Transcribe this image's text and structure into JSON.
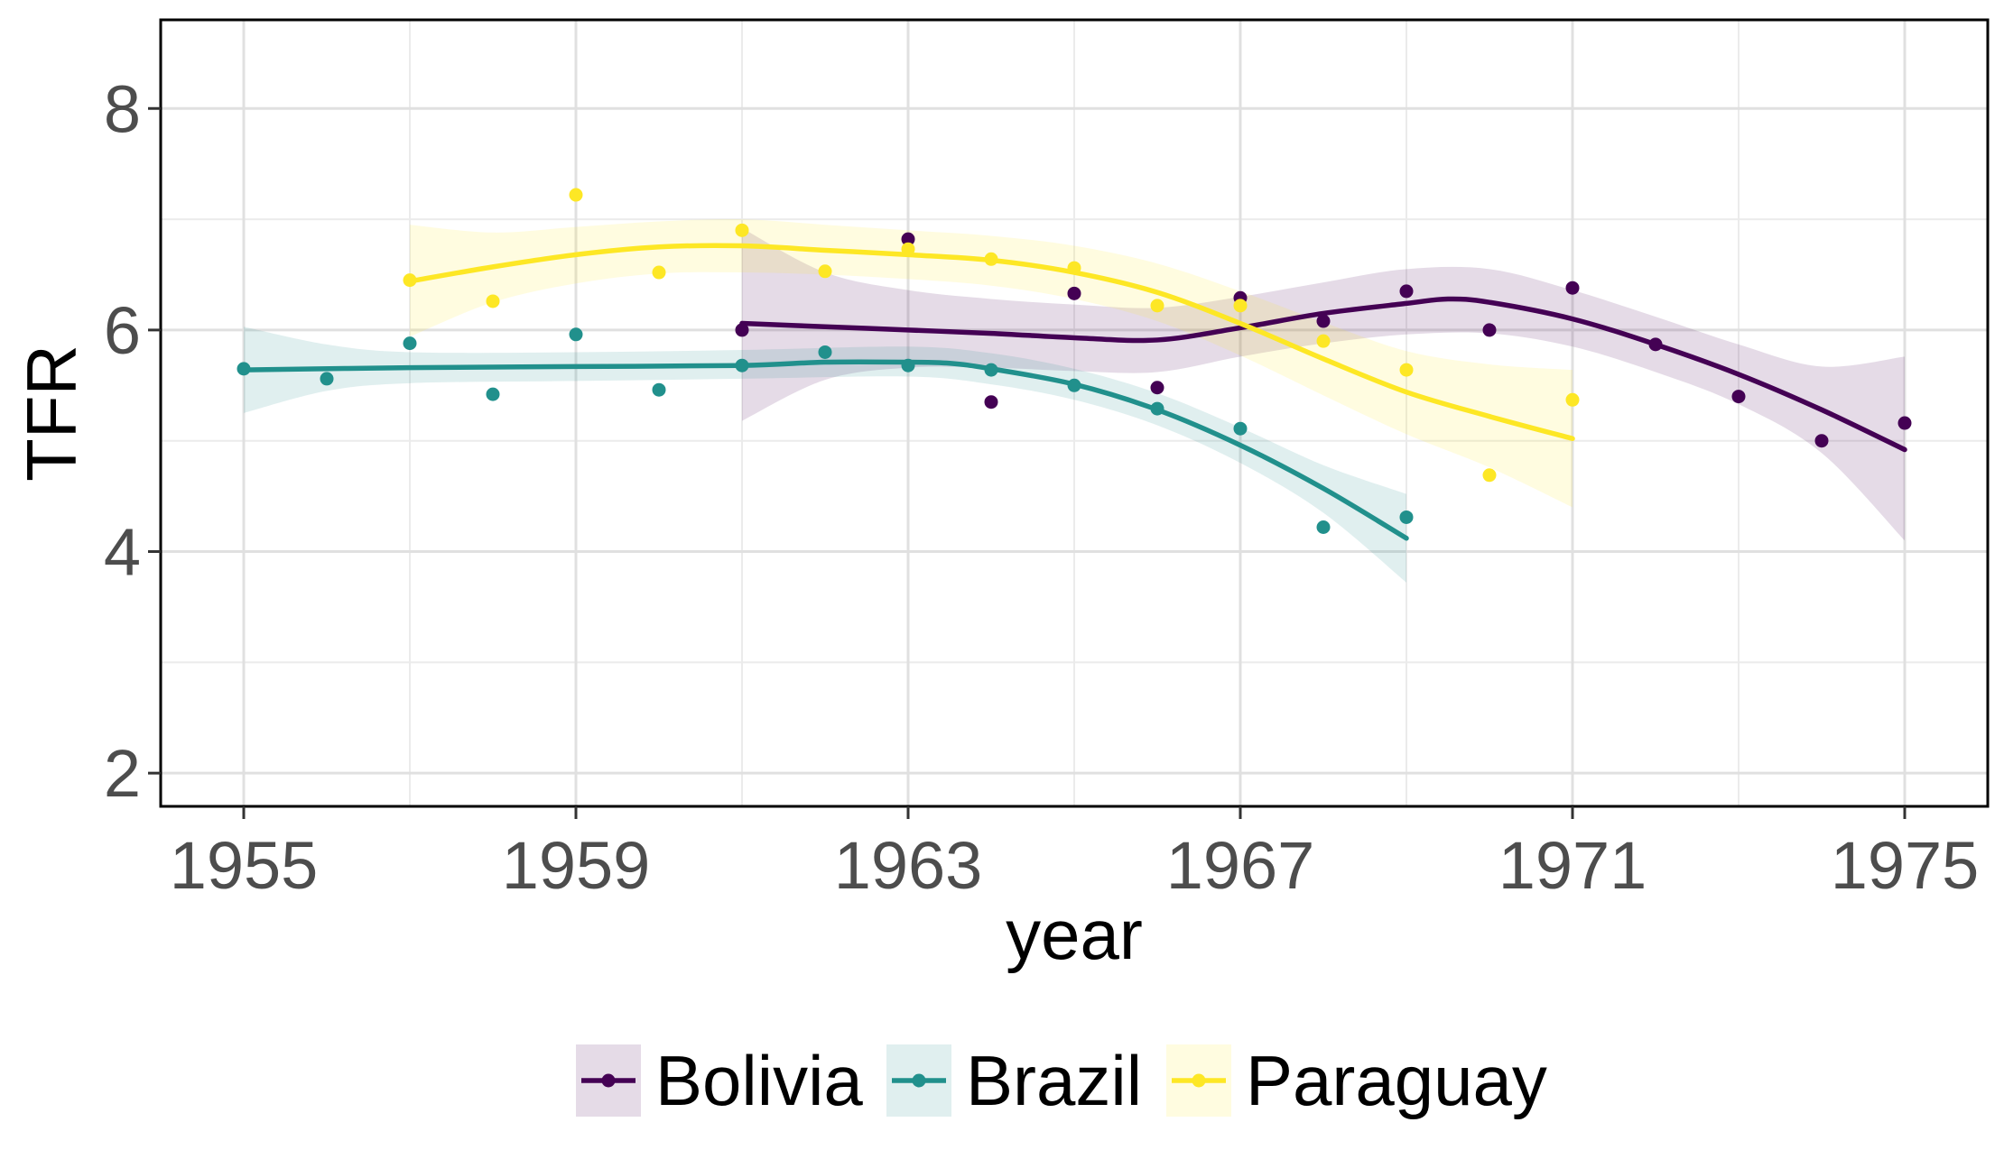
{
  "chart_data": {
    "type": "scatter",
    "xlabel": "year",
    "ylabel": "TFR",
    "xlim": [
      1954,
      1976
    ],
    "ylim": [
      1.7,
      8.8
    ],
    "x_ticks": [
      1955,
      1959,
      1963,
      1967,
      1971,
      1975
    ],
    "y_ticks": [
      2,
      4,
      6,
      8
    ],
    "y_minor_ticks": [
      3,
      5,
      7
    ],
    "x_minor_ticks": [
      1957,
      1961,
      1965,
      1969,
      1973
    ],
    "grid": true,
    "legend_position": "bottom",
    "smoother": "loess with confidence band",
    "series": [
      {
        "name": "Bolivia",
        "color": "#440154",
        "points": [
          [
            1961,
            6.0
          ],
          [
            1963,
            6.82
          ],
          [
            1964,
            5.35
          ],
          [
            1965,
            6.33
          ],
          [
            1966,
            5.48
          ],
          [
            1967,
            6.29
          ],
          [
            1968,
            6.08
          ],
          [
            1969,
            6.35
          ],
          [
            1970,
            6.0
          ],
          [
            1971,
            6.38
          ],
          [
            1972,
            5.87
          ],
          [
            1973,
            5.4
          ],
          [
            1974,
            5.0
          ],
          [
            1975,
            5.16
          ]
        ],
        "trend": [
          [
            1961,
            6.06
          ],
          [
            1962,
            6.03
          ],
          [
            1963,
            6.0
          ],
          [
            1964,
            5.97
          ],
          [
            1965,
            5.93
          ],
          [
            1966,
            5.91
          ],
          [
            1967,
            6.02
          ],
          [
            1968,
            6.15
          ],
          [
            1969,
            6.24
          ],
          [
            1969.5,
            6.28
          ],
          [
            1970,
            6.25
          ],
          [
            1971,
            6.1
          ],
          [
            1972,
            5.87
          ],
          [
            1973,
            5.6
          ],
          [
            1974,
            5.28
          ],
          [
            1975,
            4.92
          ]
        ],
        "band": [
          [
            1961,
            5.18,
            6.92
          ],
          [
            1962,
            5.55,
            6.52
          ],
          [
            1963,
            5.66,
            6.36
          ],
          [
            1964,
            5.66,
            6.28
          ],
          [
            1965,
            5.63,
            6.23
          ],
          [
            1966,
            5.62,
            6.2
          ],
          [
            1967,
            5.76,
            6.3
          ],
          [
            1968,
            5.88,
            6.43
          ],
          [
            1969,
            5.96,
            6.55
          ],
          [
            1970,
            5.97,
            6.55
          ],
          [
            1971,
            5.85,
            6.36
          ],
          [
            1972,
            5.62,
            6.12
          ],
          [
            1973,
            5.33,
            5.87
          ],
          [
            1974,
            4.89,
            5.67
          ],
          [
            1975,
            4.1,
            5.76
          ]
        ]
      },
      {
        "name": "Brazil",
        "color": "#21908C",
        "points": [
          [
            1955,
            5.65
          ],
          [
            1956,
            5.56
          ],
          [
            1957,
            5.88
          ],
          [
            1958,
            5.42
          ],
          [
            1959,
            5.96
          ],
          [
            1960,
            5.46
          ],
          [
            1961,
            5.68
          ],
          [
            1962,
            5.8
          ],
          [
            1963,
            5.68
          ],
          [
            1964,
            5.64
          ],
          [
            1965,
            5.5
          ],
          [
            1966,
            5.29
          ],
          [
            1967,
            5.11
          ],
          [
            1968,
            4.22
          ],
          [
            1969,
            4.31
          ]
        ],
        "trend": [
          [
            1955,
            5.64
          ],
          [
            1957,
            5.66
          ],
          [
            1959,
            5.67
          ],
          [
            1961,
            5.68
          ],
          [
            1962,
            5.71
          ],
          [
            1963,
            5.71
          ],
          [
            1963.5,
            5.7
          ],
          [
            1964,
            5.65
          ],
          [
            1965,
            5.51
          ],
          [
            1966,
            5.28
          ],
          [
            1967,
            4.96
          ],
          [
            1968,
            4.57
          ],
          [
            1969,
            4.12
          ]
        ],
        "band": [
          [
            1955,
            5.25,
            6.03
          ],
          [
            1956,
            5.45,
            5.87
          ],
          [
            1957,
            5.52,
            5.8
          ],
          [
            1959,
            5.54,
            5.8
          ],
          [
            1961,
            5.56,
            5.82
          ],
          [
            1963,
            5.58,
            5.85
          ],
          [
            1964,
            5.51,
            5.79
          ],
          [
            1965,
            5.37,
            5.65
          ],
          [
            1966,
            5.14,
            5.43
          ],
          [
            1967,
            4.8,
            5.12
          ],
          [
            1968,
            4.35,
            4.78
          ],
          [
            1969,
            3.72,
            4.52
          ]
        ]
      },
      {
        "name": "Paraguay",
        "color": "#FDE725",
        "points": [
          [
            1957,
            6.45
          ],
          [
            1958,
            6.26
          ],
          [
            1959,
            7.22
          ],
          [
            1960,
            6.52
          ],
          [
            1961,
            6.9
          ],
          [
            1962,
            6.53
          ],
          [
            1963,
            6.73
          ],
          [
            1964,
            6.64
          ],
          [
            1965,
            6.56
          ],
          [
            1966,
            6.22
          ],
          [
            1967,
            6.22
          ],
          [
            1968,
            5.9
          ],
          [
            1969,
            5.64
          ],
          [
            1970,
            4.69
          ],
          [
            1971,
            5.37
          ]
        ],
        "trend": [
          [
            1957,
            6.44
          ],
          [
            1958,
            6.57
          ],
          [
            1959,
            6.68
          ],
          [
            1960,
            6.75
          ],
          [
            1961,
            6.76
          ],
          [
            1962,
            6.72
          ],
          [
            1963,
            6.68
          ],
          [
            1964,
            6.63
          ],
          [
            1965,
            6.52
          ],
          [
            1966,
            6.34
          ],
          [
            1967,
            6.06
          ],
          [
            1968,
            5.74
          ],
          [
            1969,
            5.44
          ],
          [
            1970,
            5.22
          ],
          [
            1971,
            5.02
          ]
        ],
        "band": [
          [
            1957,
            5.94,
            6.95
          ],
          [
            1958,
            6.25,
            6.88
          ],
          [
            1959,
            6.42,
            6.93
          ],
          [
            1960,
            6.51,
            6.98
          ],
          [
            1961,
            6.52,
            7.0
          ],
          [
            1962,
            6.5,
            6.95
          ],
          [
            1963,
            6.46,
            6.9
          ],
          [
            1964,
            6.4,
            6.85
          ],
          [
            1965,
            6.28,
            6.76
          ],
          [
            1966,
            6.08,
            6.6
          ],
          [
            1967,
            5.77,
            6.35
          ],
          [
            1968,
            5.41,
            6.07
          ],
          [
            1969,
            5.06,
            5.81
          ],
          [
            1970,
            4.76,
            5.69
          ],
          [
            1971,
            4.4,
            5.64
          ]
        ]
      }
    ]
  }
}
